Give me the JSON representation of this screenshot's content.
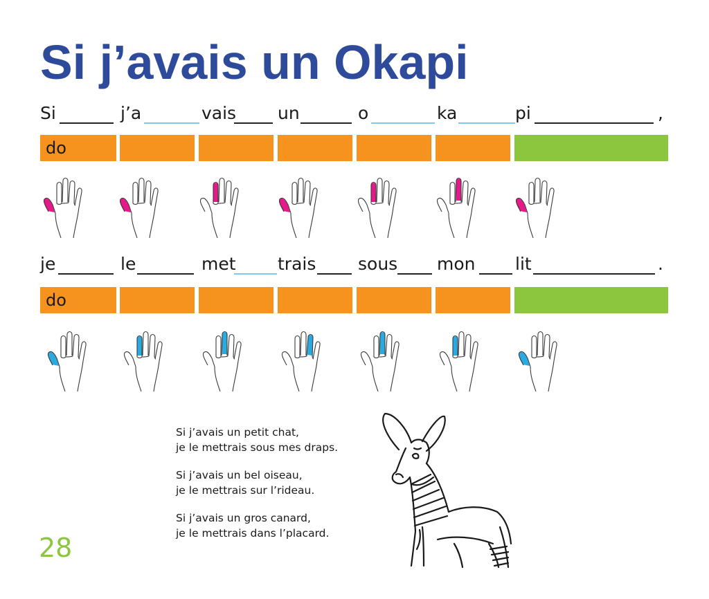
{
  "title": "Si j’avais un Okapi",
  "line1": {
    "syllables": [
      "Si",
      "j’a",
      "vais",
      "un",
      "o",
      "ka",
      "pi"
    ],
    "punct": ",",
    "notes": [
      "do",
      "",
      "",
      "",
      "",
      "",
      ""
    ],
    "bar_colors": [
      "#f6921e",
      "#f6921e",
      "#f6921e",
      "#f6921e",
      "#f6921e",
      "#f6921e",
      "#8cc63f"
    ],
    "finger_color": "#e5198a",
    "hands": [
      {
        "icon": "hand-outline-icon",
        "finger": "thumb"
      },
      {
        "icon": "hand-outline-icon",
        "finger": "thumb"
      },
      {
        "icon": "hand-outline-icon",
        "finger": "index"
      },
      {
        "icon": "hand-outline-icon",
        "finger": "thumb"
      },
      {
        "icon": "hand-outline-icon",
        "finger": "index"
      },
      {
        "icon": "hand-outline-icon",
        "finger": "middle"
      },
      {
        "icon": "hand-outline-icon",
        "finger": "thumb"
      }
    ]
  },
  "line2": {
    "syllables": [
      "je",
      "le",
      "met",
      "trais",
      "sous",
      "mon",
      "lit"
    ],
    "punct": ".",
    "notes": [
      "do",
      "",
      "",
      "",
      "",
      "",
      ""
    ],
    "bar_colors": [
      "#f6921e",
      "#f6921e",
      "#f6921e",
      "#f6921e",
      "#f6921e",
      "#f6921e",
      "#8cc63f"
    ],
    "finger_color": "#29abe2",
    "hands": [
      {
        "icon": "hand-outline-icon",
        "finger": "thumb"
      },
      {
        "icon": "hand-outline-icon",
        "finger": "index"
      },
      {
        "icon": "hand-outline-icon",
        "finger": "middle"
      },
      {
        "icon": "hand-outline-icon",
        "finger": "ring"
      },
      {
        "icon": "hand-outline-icon",
        "finger": "middle"
      },
      {
        "icon": "hand-outline-icon",
        "finger": "index"
      },
      {
        "icon": "hand-outline-icon",
        "finger": "thumb"
      }
    ]
  },
  "verses": [
    [
      "Si j’avais un petit chat,",
      "je le mettrais sous mes draps."
    ],
    [
      "Si j’avais un bel oiseau,",
      "je le mettrais sur l’rideau."
    ],
    [
      "Si j’avais un gros canard,",
      "je le mettrais dans l’placard."
    ]
  ],
  "page_number": "28",
  "illustration": {
    "icon": "okapi-drawing-icon"
  },
  "colors": {
    "title": "#2e4a9a",
    "orange": "#f6921e",
    "green": "#8cc63f",
    "pink": "#e5198a",
    "blue": "#29abe2",
    "tie": "#7fc8ea"
  }
}
